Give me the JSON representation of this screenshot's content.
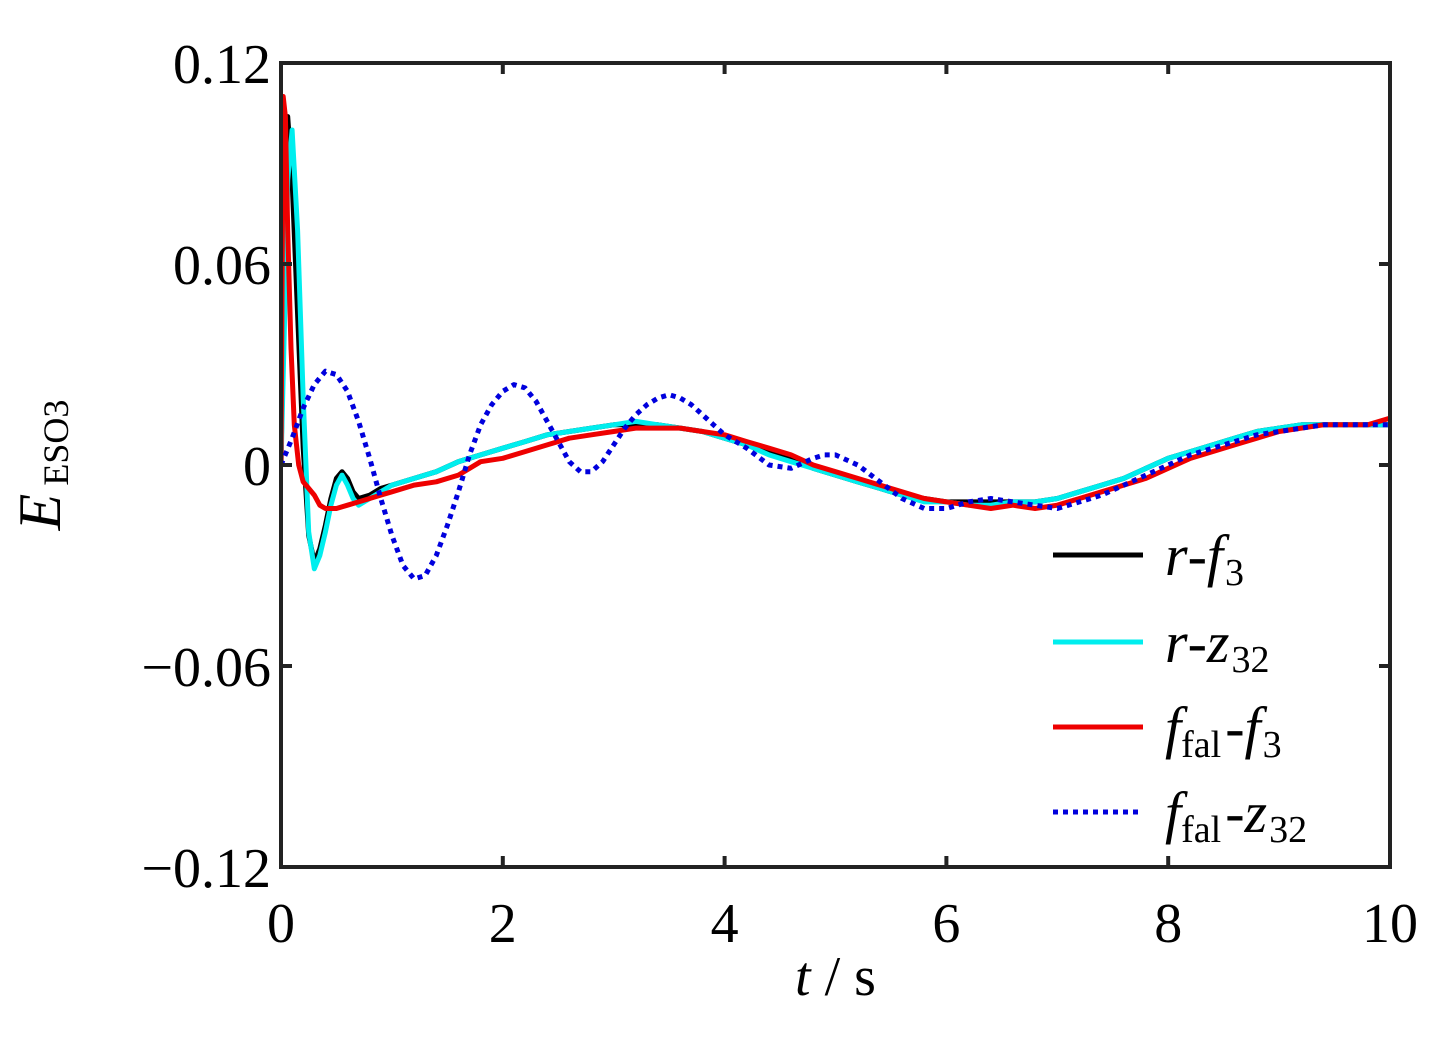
{
  "chart_data": {
    "type": "line",
    "xlabel": {
      "var": "t",
      "sep": " / ",
      "unit": "s"
    },
    "ylabel": {
      "main": "E",
      "sub": "ESO3"
    },
    "xlim": [
      0,
      10
    ],
    "ylim": [
      -0.12,
      0.12
    ],
    "x_ticks": [
      0,
      2,
      4,
      6,
      8,
      10
    ],
    "x_tick_labels": [
      "0",
      "2",
      "4",
      "6",
      "8",
      "10"
    ],
    "y_ticks": [
      -0.12,
      -0.06,
      0,
      0.06,
      0.12
    ],
    "y_tick_labels": [
      "−0.12",
      "−0.06",
      "0",
      "0.06",
      "0.12"
    ],
    "grid": false,
    "legend_position": "bottom-right",
    "series": [
      {
        "name": "r-f3",
        "label_parts": {
          "a": "r",
          "a_sub": "",
          "b": "f",
          "b_sub": "3"
        },
        "color": "#000000",
        "dash": "solid",
        "x": [
          0,
          0.03,
          0.06,
          0.1,
          0.15,
          0.2,
          0.25,
          0.3,
          0.35,
          0.4,
          0.45,
          0.5,
          0.55,
          0.6,
          0.65,
          0.7,
          0.8,
          0.9,
          1.0,
          1.2,
          1.4,
          1.6,
          1.8,
          2.0,
          2.2,
          2.4,
          2.6,
          2.8,
          3.0,
          3.2,
          3.4,
          3.6,
          3.8,
          4.0,
          4.2,
          4.4,
          4.6,
          4.8,
          5.0,
          5.2,
          5.4,
          5.6,
          5.8,
          6.0,
          6.2,
          6.4,
          6.6,
          6.8,
          7.0,
          7.2,
          7.4,
          7.6,
          7.8,
          8.0,
          8.2,
          8.4,
          8.6,
          8.8,
          9.0,
          9.2,
          9.4,
          9.6,
          9.8,
          10.0
        ],
        "y": [
          0,
          0.06,
          0.104,
          0.085,
          0.045,
          0.005,
          -0.021,
          -0.029,
          -0.025,
          -0.018,
          -0.01,
          -0.004,
          -0.002,
          -0.004,
          -0.008,
          -0.01,
          -0.009,
          -0.007,
          -0.006,
          -0.004,
          -0.002,
          0.001,
          0.003,
          0.005,
          0.007,
          0.009,
          0.01,
          0.011,
          0.012,
          0.012,
          0.012,
          0.011,
          0.01,
          0.008,
          0.006,
          0.004,
          0.002,
          -0.001,
          -0.003,
          -0.005,
          -0.007,
          -0.009,
          -0.01,
          -0.011,
          -0.011,
          -0.011,
          -0.011,
          -0.011,
          -0.01,
          -0.008,
          -0.006,
          -0.004,
          -0.001,
          0.002,
          0.004,
          0.006,
          0.008,
          0.01,
          0.011,
          0.012,
          0.012,
          0.012,
          0.012,
          0.012
        ]
      },
      {
        "name": "r-z32",
        "label_parts": {
          "a": "r",
          "a_sub": "",
          "b": "z",
          "b_sub": "32"
        },
        "color": "#00eeee",
        "dash": "solid",
        "x": [
          0,
          0.03,
          0.06,
          0.1,
          0.15,
          0.2,
          0.25,
          0.3,
          0.35,
          0.4,
          0.45,
          0.5,
          0.55,
          0.6,
          0.65,
          0.7,
          0.8,
          0.9,
          1.0,
          1.2,
          1.4,
          1.6,
          1.8,
          2.0,
          2.2,
          2.4,
          2.6,
          2.8,
          3.0,
          3.2,
          3.4,
          3.6,
          3.8,
          4.0,
          4.2,
          4.4,
          4.6,
          4.8,
          5.0,
          5.2,
          5.4,
          5.6,
          5.8,
          6.0,
          6.2,
          6.4,
          6.6,
          6.8,
          7.0,
          7.2,
          7.4,
          7.6,
          7.8,
          8.0,
          8.2,
          8.4,
          8.6,
          8.8,
          9.0,
          9.2,
          9.4,
          9.6,
          9.8,
          10.0
        ],
        "y": [
          0,
          0.04,
          0.085,
          0.1,
          0.07,
          0.02,
          -0.02,
          -0.031,
          -0.027,
          -0.02,
          -0.012,
          -0.006,
          -0.003,
          -0.006,
          -0.01,
          -0.012,
          -0.01,
          -0.008,
          -0.006,
          -0.004,
          -0.002,
          0.001,
          0.003,
          0.005,
          0.007,
          0.009,
          0.01,
          0.011,
          0.012,
          0.013,
          0.012,
          0.011,
          0.01,
          0.008,
          0.006,
          0.003,
          0.001,
          -0.001,
          -0.003,
          -0.005,
          -0.007,
          -0.009,
          -0.011,
          -0.011,
          -0.012,
          -0.012,
          -0.011,
          -0.011,
          -0.01,
          -0.008,
          -0.006,
          -0.004,
          -0.001,
          0.002,
          0.004,
          0.006,
          0.008,
          0.01,
          0.011,
          0.012,
          0.012,
          0.012,
          0.012,
          0.012
        ]
      },
      {
        "name": "ffal-f3",
        "label_parts": {
          "a": "f",
          "a_sub": "fal",
          "b": "f",
          "b_sub": "3"
        },
        "color": "#ee0000",
        "dash": "solid",
        "x": [
          0,
          0.02,
          0.04,
          0.06,
          0.09,
          0.12,
          0.16,
          0.2,
          0.25,
          0.3,
          0.35,
          0.4,
          0.5,
          0.6,
          0.7,
          0.8,
          0.9,
          1.0,
          1.2,
          1.4,
          1.6,
          1.8,
          2.0,
          2.2,
          2.4,
          2.6,
          2.8,
          3.0,
          3.2,
          3.4,
          3.6,
          3.8,
          4.0,
          4.2,
          4.4,
          4.6,
          4.8,
          5.0,
          5.2,
          5.4,
          5.6,
          5.8,
          6.0,
          6.2,
          6.4,
          6.6,
          6.8,
          7.0,
          7.2,
          7.4,
          7.6,
          7.8,
          8.0,
          8.2,
          8.4,
          8.6,
          8.8,
          9.0,
          9.2,
          9.4,
          9.6,
          9.8,
          10.0
        ],
        "y": [
          0,
          0.11,
          0.104,
          0.07,
          0.035,
          0.012,
          0.0,
          -0.005,
          -0.007,
          -0.009,
          -0.012,
          -0.013,
          -0.013,
          -0.012,
          -0.011,
          -0.01,
          -0.009,
          -0.008,
          -0.006,
          -0.005,
          -0.003,
          0.001,
          0.002,
          0.004,
          0.006,
          0.008,
          0.009,
          0.01,
          0.011,
          0.011,
          0.011,
          0.01,
          0.009,
          0.007,
          0.005,
          0.003,
          0.0,
          -0.002,
          -0.004,
          -0.006,
          -0.008,
          -0.01,
          -0.011,
          -0.012,
          -0.013,
          -0.012,
          -0.013,
          -0.012,
          -0.01,
          -0.008,
          -0.006,
          -0.004,
          -0.001,
          0.002,
          0.004,
          0.006,
          0.008,
          0.01,
          0.011,
          0.012,
          0.012,
          0.012,
          0.014
        ]
      },
      {
        "name": "ffal-z32",
        "label_parts": {
          "a": "f",
          "a_sub": "fal",
          "b": "z",
          "b_sub": "32"
        },
        "color": "#0000dd",
        "dash": "dotted",
        "x": [
          0,
          0.1,
          0.2,
          0.3,
          0.4,
          0.5,
          0.6,
          0.7,
          0.8,
          0.9,
          1.0,
          1.1,
          1.2,
          1.3,
          1.4,
          1.5,
          1.6,
          1.7,
          1.8,
          1.9,
          2.0,
          2.1,
          2.2,
          2.3,
          2.4,
          2.5,
          2.6,
          2.7,
          2.8,
          2.9,
          3.0,
          3.1,
          3.2,
          3.3,
          3.4,
          3.5,
          3.6,
          3.7,
          3.8,
          3.9,
          4.0,
          4.2,
          4.4,
          4.6,
          4.8,
          4.9,
          5.0,
          5.2,
          5.4,
          5.6,
          5.8,
          6.0,
          6.2,
          6.4,
          6.6,
          6.8,
          7.0,
          7.2,
          7.4,
          7.6,
          7.8,
          8.0,
          8.2,
          8.4,
          8.6,
          8.8,
          9.0,
          9.2,
          9.4,
          9.6,
          9.8,
          10.0
        ],
        "y": [
          0,
          0.008,
          0.017,
          0.024,
          0.028,
          0.027,
          0.022,
          0.013,
          0.002,
          -0.01,
          -0.021,
          -0.03,
          -0.034,
          -0.033,
          -0.027,
          -0.018,
          -0.008,
          0.003,
          0.012,
          0.018,
          0.022,
          0.024,
          0.023,
          0.019,
          0.013,
          0.007,
          0.001,
          -0.002,
          -0.002,
          0.001,
          0.006,
          0.011,
          0.015,
          0.018,
          0.02,
          0.021,
          0.02,
          0.018,
          0.015,
          0.012,
          0.009,
          0.005,
          0.0,
          -0.001,
          0.002,
          0.003,
          0.003,
          0.0,
          -0.005,
          -0.01,
          -0.013,
          -0.013,
          -0.011,
          -0.01,
          -0.011,
          -0.012,
          -0.013,
          -0.011,
          -0.009,
          -0.006,
          -0.003,
          0.0,
          0.003,
          0.005,
          0.007,
          0.009,
          0.01,
          0.011,
          0.012,
          0.012,
          0.012,
          0.012
        ]
      }
    ]
  }
}
